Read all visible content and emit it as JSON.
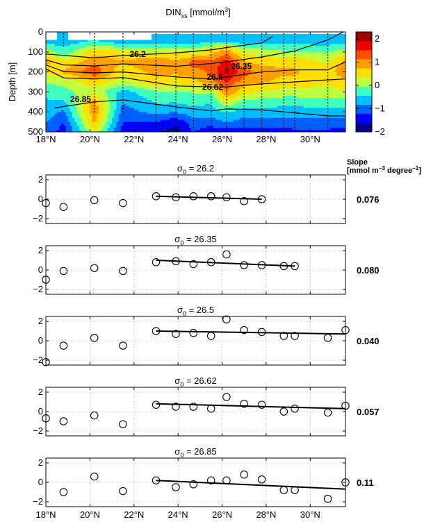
{
  "chart_data": [
    {
      "type": "heatmap",
      "title": "DIN",
      "title_sub": "xs",
      "title_units_pre": "[mmol/m",
      "title_units_sup": "3",
      "title_units_post": "]",
      "ylabel": "Depth   [m]",
      "xlim": [
        18,
        31.6
      ],
      "ylim": [
        500,
        0
      ],
      "xticks": [
        {
          "v": 18,
          "label": "18°N"
        },
        {
          "v": 20,
          "label": "20°N"
        },
        {
          "v": 22,
          "label": "22°N"
        },
        {
          "v": 24,
          "label": "24°N"
        },
        {
          "v": 26,
          "label": "26°N"
        },
        {
          "v": 28,
          "label": "28°N"
        },
        {
          "v": 30,
          "label": "30°N"
        }
      ],
      "yticks": [
        {
          "v": 0,
          "label": "0"
        },
        {
          "v": 100,
          "label": "100"
        },
        {
          "v": 200,
          "label": "200"
        },
        {
          "v": 300,
          "label": "300"
        },
        {
          "v": 400,
          "label": "400"
        },
        {
          "v": 500,
          "label": "500"
        }
      ],
      "colorbar": {
        "range": [
          -2,
          2.3
        ],
        "ticks": [
          {
            "v": 2,
            "label": "2"
          },
          {
            "v": 1,
            "label": "1"
          },
          {
            "v": 0,
            "label": "0"
          },
          {
            "v": -1,
            "label": "−1"
          },
          {
            "v": -2,
            "label": "−2"
          }
        ]
      },
      "stations": [
        18.8,
        20.2,
        21.5,
        23.0,
        23.9,
        24.7,
        25.5,
        26.2,
        27.0,
        27.8,
        28.8,
        29.3,
        30.8
      ],
      "station_max_depth": [
        80,
        400,
        420,
        480,
        500,
        500,
        500,
        500,
        500,
        500,
        500,
        500,
        500
      ],
      "field_columns": [
        {
          "x": 18.0,
          "v": [
            -0.6,
            -0.6,
            0.2,
            0.9,
            0.4,
            0.0,
            -0.3,
            -0.5,
            -0.6,
            -0.8,
            -1.0
          ]
        },
        {
          "x": 18.8,
          "v": [
            -0.6,
            -0.6,
            -0.3,
            0.4,
            0.8,
            0.1,
            -0.2,
            -0.5,
            -0.9,
            -1.2,
            -1.4
          ]
        },
        {
          "x": 20.2,
          "v": [
            -0.4,
            -0.4,
            0.6,
            1.0,
            1.4,
            0.6,
            0.2,
            0.9,
            1.0,
            0.8,
            0.3
          ]
        },
        {
          "x": 21.5,
          "v": [
            -0.6,
            -0.6,
            0.4,
            0.8,
            0.4,
            0.2,
            -0.6,
            -0.8,
            -1.0,
            -1.2,
            -1.4
          ]
        },
        {
          "x": 23.0,
          "v": [
            -0.6,
            -0.6,
            0.2,
            1.1,
            0.9,
            0.6,
            -0.1,
            -0.4,
            -0.7,
            -1.2,
            -1.6
          ]
        },
        {
          "x": 23.9,
          "v": [
            -0.6,
            -0.6,
            0.4,
            0.8,
            0.8,
            0.5,
            -0.1,
            -0.4,
            -0.8,
            -1.5,
            -1.8
          ]
        },
        {
          "x": 24.7,
          "v": [
            -0.6,
            -0.6,
            0.2,
            1.3,
            1.0,
            0.6,
            0.0,
            -0.3,
            -0.6,
            -1.0,
            -1.2
          ]
        },
        {
          "x": 25.5,
          "v": [
            -0.6,
            -0.4,
            0.6,
            1.2,
            1.2,
            1.0,
            0.0,
            -0.4,
            -0.6,
            -1.0,
            -1.5
          ]
        },
        {
          "x": 26.2,
          "v": [
            -0.6,
            -0.2,
            1.0,
            1.7,
            2.1,
            1.5,
            1.1,
            0.3,
            -0.4,
            -0.8,
            -1.4
          ]
        },
        {
          "x": 27.0,
          "v": [
            -0.6,
            -0.6,
            0.2,
            0.8,
            1.3,
            0.9,
            0.5,
            -0.2,
            -0.6,
            -1.0,
            -1.4
          ]
        },
        {
          "x": 27.8,
          "v": [
            -0.6,
            -0.6,
            0.2,
            0.6,
            1.0,
            0.8,
            0.3,
            -0.2,
            -0.6,
            -1.0,
            -1.4
          ]
        },
        {
          "x": 28.8,
          "v": [
            -0.6,
            -0.6,
            0.0,
            0.6,
            0.8,
            0.6,
            0.2,
            -0.3,
            -0.6,
            -1.0,
            -1.4
          ]
        },
        {
          "x": 29.3,
          "v": [
            -0.6,
            -0.6,
            0.0,
            0.6,
            0.8,
            0.6,
            0.2,
            -0.3,
            -0.6,
            -1.0,
            -1.3
          ]
        },
        {
          "x": 30.8,
          "v": [
            -0.6,
            -0.6,
            -0.1,
            0.3,
            0.5,
            0.4,
            0.2,
            -0.2,
            -0.6,
            -1.0,
            -1.3
          ]
        },
        {
          "x": 31.6,
          "v": [
            -0.6,
            -0.6,
            0.2,
            0.9,
            1.1,
            0.6,
            0.3,
            -0.2,
            -0.6,
            -1.0,
            -1.4
          ]
        }
      ],
      "field_depths": [
        0,
        50,
        100,
        150,
        200,
        250,
        300,
        350,
        400,
        450,
        500
      ],
      "isopycnals": [
        {
          "label": "26.2",
          "label_at": [
            21.8,
            125
          ],
          "points": [
            [
              18,
              110
            ],
            [
              20.2,
              130
            ],
            [
              21.5,
              118
            ],
            [
              23.9,
              105
            ],
            [
              25.5,
              90
            ],
            [
              26.2,
              78
            ],
            [
              27.8,
              55
            ],
            [
              28.3,
              22
            ]
          ]
        },
        {
          "label": "26.35",
          "label_at": [
            26.4,
            185
          ],
          "points": [
            [
              18,
              140
            ],
            [
              18.8,
              165
            ],
            [
              20.2,
              170
            ],
            [
              21.5,
              160
            ],
            [
              23.9,
              172
            ],
            [
              25.5,
              158
            ],
            [
              26.2,
              150
            ],
            [
              27.8,
              125
            ],
            [
              29.3,
              95
            ],
            [
              30.8,
              40
            ],
            [
              31.5,
              0
            ]
          ]
        },
        {
          "label": "26.5",
          "label_at": [
            25.3,
            240
          ],
          "points": [
            [
              18,
              165
            ],
            [
              18.8,
              198
            ],
            [
              20.2,
              205
            ],
            [
              21.5,
              200
            ],
            [
              23.9,
              225
            ],
            [
              25.5,
              235
            ],
            [
              26.2,
              225
            ],
            [
              27.8,
              200
            ],
            [
              29.3,
              190
            ],
            [
              30.8,
              190
            ],
            [
              31.6,
              150
            ]
          ]
        },
        {
          "label": "26.62",
          "label_at": [
            25.1,
            290
          ],
          "points": [
            [
              18,
              185
            ],
            [
              18.8,
              230
            ],
            [
              20.2,
              235
            ],
            [
              21.5,
              228
            ],
            [
              23.9,
              270
            ],
            [
              25.5,
              275
            ],
            [
              26.2,
              275
            ],
            [
              27.8,
              260
            ],
            [
              29.3,
              250
            ],
            [
              30.8,
              240
            ],
            [
              31.6,
              235
            ]
          ]
        },
        {
          "label": "26.85",
          "label_at": [
            19.1,
            350
          ],
          "points": [
            [
              18.4,
              380
            ],
            [
              20.2,
              350
            ],
            [
              21.5,
              340
            ],
            [
              23.9,
              375
            ],
            [
              25.5,
              395
            ],
            [
              26.2,
              385
            ],
            [
              27.8,
              390
            ],
            [
              29.3,
              405
            ],
            [
              30.8,
              420
            ],
            [
              31.6,
              420
            ]
          ]
        }
      ]
    },
    {
      "type": "scatter",
      "title": "σ",
      "title_sub": "0",
      "title_eq": " = 26.2",
      "xlim": [
        18,
        31.6
      ],
      "ylim": [
        -2.5,
        2.5
      ],
      "slope": "0.076",
      "points": [
        [
          18.0,
          -0.4
        ],
        [
          18.8,
          -0.8
        ],
        [
          20.2,
          -0.1
        ],
        [
          21.5,
          -0.4
        ],
        [
          23.0,
          0.3
        ],
        [
          23.9,
          0.2
        ],
        [
          24.7,
          0.3
        ],
        [
          25.5,
          0.3
        ],
        [
          26.2,
          0.2
        ],
        [
          27.0,
          -0.2
        ],
        [
          27.8,
          0.0
        ]
      ],
      "fit": [
        [
          23.0,
          0.3
        ],
        [
          27.8,
          0.0
        ]
      ]
    },
    {
      "type": "scatter",
      "title": "σ",
      "title_sub": "0",
      "title_eq": " = 26.35",
      "xlim": [
        18,
        31.6
      ],
      "ylim": [
        -2.5,
        2.5
      ],
      "slope": "0.080",
      "points": [
        [
          18.0,
          -1.0
        ],
        [
          18.8,
          -0.1
        ],
        [
          20.2,
          0.2
        ],
        [
          21.5,
          -0.1
        ],
        [
          23.0,
          0.8
        ],
        [
          23.9,
          0.9
        ],
        [
          24.7,
          0.6
        ],
        [
          25.5,
          0.8
        ],
        [
          26.2,
          1.6
        ],
        [
          27.0,
          0.5
        ],
        [
          27.8,
          0.5
        ],
        [
          28.8,
          0.4
        ],
        [
          29.3,
          0.4
        ]
      ],
      "fit": [
        [
          23.0,
          1.0
        ],
        [
          29.3,
          0.4
        ]
      ]
    },
    {
      "type": "scatter",
      "title": "σ",
      "title_sub": "0",
      "title_eq": " = 26.5",
      "xlim": [
        18,
        31.6
      ],
      "ylim": [
        -2.5,
        2.5
      ],
      "slope": "0.040",
      "points": [
        [
          18.0,
          -2.2
        ],
        [
          18.8,
          -0.5
        ],
        [
          20.2,
          0.3
        ],
        [
          21.5,
          -0.5
        ],
        [
          23.0,
          1.0
        ],
        [
          23.9,
          0.7
        ],
        [
          24.7,
          0.8
        ],
        [
          25.5,
          0.5
        ],
        [
          26.2,
          2.2
        ],
        [
          27.0,
          1.1
        ],
        [
          27.8,
          0.9
        ],
        [
          28.8,
          0.5
        ],
        [
          29.3,
          0.5
        ],
        [
          30.8,
          0.3
        ],
        [
          31.6,
          1.1
        ]
      ],
      "fit": [
        [
          23.0,
          1.0
        ],
        [
          31.6,
          0.7
        ]
      ]
    },
    {
      "type": "scatter",
      "title": "σ",
      "title_sub": "0",
      "title_eq": " = 26.62",
      "xlim": [
        18,
        31.6
      ],
      "ylim": [
        -2.5,
        2.5
      ],
      "slope": "0.057",
      "points": [
        [
          18.0,
          -0.7
        ],
        [
          18.8,
          -1.0
        ],
        [
          20.2,
          -0.4
        ],
        [
          21.5,
          -1.3
        ],
        [
          23.0,
          0.7
        ],
        [
          23.9,
          0.5
        ],
        [
          24.7,
          0.5
        ],
        [
          25.5,
          0.3
        ],
        [
          26.2,
          1.5
        ],
        [
          27.0,
          0.8
        ],
        [
          27.8,
          0.7
        ],
        [
          28.8,
          0.0
        ],
        [
          29.3,
          0.3
        ],
        [
          30.8,
          -0.1
        ],
        [
          31.6,
          0.6
        ]
      ],
      "fit": [
        [
          23.0,
          0.8
        ],
        [
          31.6,
          0.3
        ]
      ]
    },
    {
      "type": "scatter",
      "title": "σ",
      "title_sub": "0",
      "title_eq": " = 26.85",
      "xlim": [
        18,
        31.6
      ],
      "ylim": [
        -2.5,
        2.5
      ],
      "slope": "0.11",
      "points": [
        [
          18.8,
          -1.0
        ],
        [
          20.2,
          0.6
        ],
        [
          21.5,
          -0.9
        ],
        [
          23.0,
          0.2
        ],
        [
          23.9,
          -0.5
        ],
        [
          24.7,
          -0.2
        ],
        [
          25.5,
          0.2
        ],
        [
          26.2,
          0.2
        ],
        [
          27.0,
          0.8
        ],
        [
          27.8,
          0.3
        ],
        [
          28.8,
          -0.8
        ],
        [
          29.3,
          -0.8
        ],
        [
          30.8,
          -1.7
        ],
        [
          31.6,
          0.0
        ]
      ],
      "fit": [
        [
          23.0,
          0.2
        ],
        [
          31.6,
          -0.7
        ]
      ]
    }
  ],
  "slope_header": {
    "line1": "Slope",
    "line2_pre": "[mmol m",
    "line2_sup1": "−3",
    "line2_mid": " degree",
    "line2_sup2": "−1",
    "line2_post": "]"
  },
  "scatter_yticks": [
    {
      "v": 2,
      "label": "2"
    },
    {
      "v": 0,
      "label": "0"
    },
    {
      "v": -2,
      "label": "−2"
    }
  ],
  "scatter_xticks": [
    {
      "v": 18,
      "label": "18°N"
    },
    {
      "v": 20,
      "label": "20°N"
    },
    {
      "v": 22,
      "label": "22°N"
    },
    {
      "v": 24,
      "label": "24°N"
    },
    {
      "v": 26,
      "label": "26°N"
    },
    {
      "v": 28,
      "label": "28°N"
    },
    {
      "v": 30,
      "label": "30°N"
    }
  ],
  "colors": {
    "colormap": [
      "#00008f",
      "#0000ff",
      "#0060ff",
      "#00bfff",
      "#40ffbf",
      "#bfff40",
      "#ffdf00",
      "#ff9f00",
      "#ff5000",
      "#ef0000",
      "#a00000"
    ]
  }
}
